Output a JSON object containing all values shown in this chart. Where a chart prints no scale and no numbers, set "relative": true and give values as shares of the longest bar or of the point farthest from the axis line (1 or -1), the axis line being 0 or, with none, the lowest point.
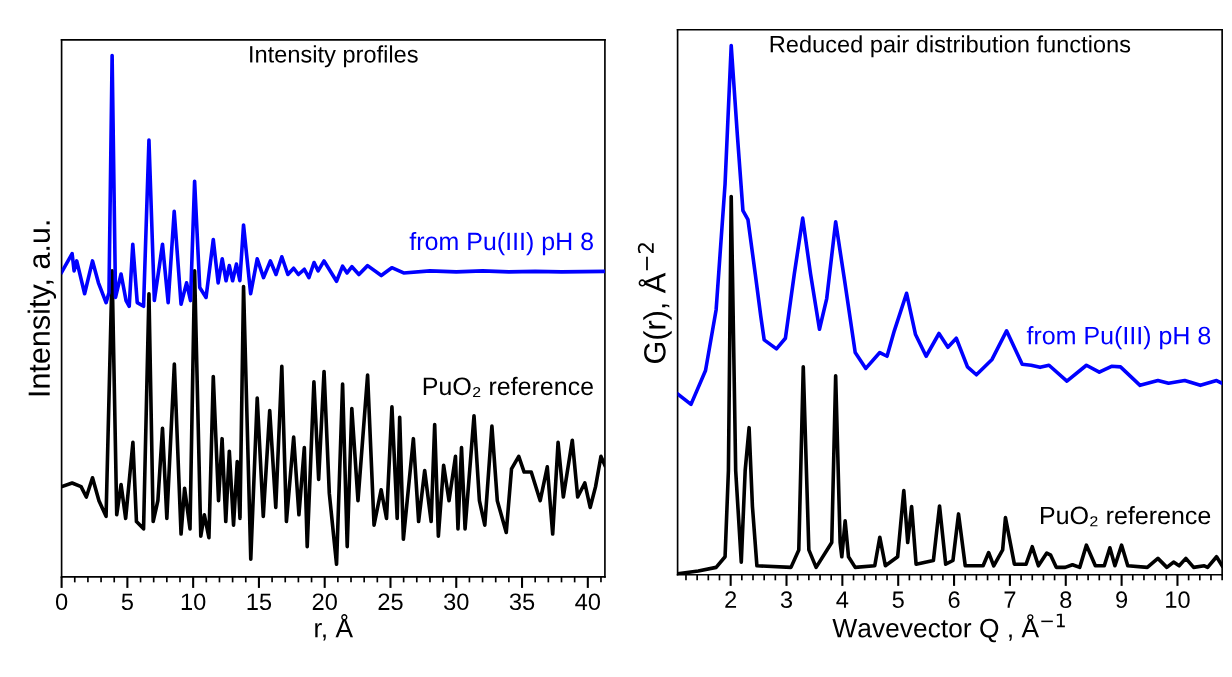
{
  "chart_data": [
    {
      "type": "line",
      "title": "Intensity profiles",
      "xlabel": "r, Å",
      "ylabel": "Intensity, a.u.",
      "relative": true,
      "tick_labels": "x",
      "grid": false,
      "legend": false,
      "xlim": [
        0,
        41.3
      ],
      "xticks": [
        0,
        5,
        10,
        15,
        20,
        25,
        30,
        35,
        40
      ],
      "series": [
        {
          "name": "from Pu(III) pH 8",
          "color": "#0000ff",
          "x": [
            0,
            0.8,
            0.95,
            1.15,
            1.75,
            2.35,
            2.8,
            3.38,
            3.6,
            3.84,
            4.1,
            4.52,
            4.9,
            5.14,
            5.41,
            5.75,
            6.23,
            6.64,
            7.05,
            7.67,
            8.1,
            8.56,
            9.08,
            9.5,
            9.8,
            10.11,
            10.5,
            10.98,
            11.53,
            11.9,
            12.21,
            12.5,
            12.75,
            13.0,
            13.29,
            13.55,
            13.83,
            14.37,
            14.87,
            15.35,
            15.87,
            16.3,
            16.74,
            17.2,
            17.64,
            18.0,
            18.45,
            18.8,
            19.19,
            19.5,
            19.95,
            20.9,
            21.36,
            21.7,
            22.07,
            22.6,
            23.26,
            24.3,
            25.1,
            26,
            28,
            30,
            32,
            34,
            36,
            38,
            41.3
          ],
          "values": [
            0.584,
            0.62,
            0.587,
            0.606,
            0.543,
            0.606,
            0.564,
            0.526,
            0.545,
            1.0,
            0.536,
            0.581,
            0.53,
            0.519,
            0.638,
            0.526,
            0.519,
            0.838,
            0.53,
            0.638,
            0.526,
            0.701,
            0.523,
            0.564,
            0.53,
            0.759,
            0.555,
            0.536,
            0.647,
            0.564,
            0.61,
            0.568,
            0.597,
            0.568,
            0.6,
            0.568,
            0.675,
            0.543,
            0.61,
            0.574,
            0.606,
            0.58,
            0.614,
            0.58,
            0.592,
            0.58,
            0.59,
            0.574,
            0.603,
            0.587,
            0.606,
            0.567,
            0.596,
            0.583,
            0.595,
            0.58,
            0.597,
            0.578,
            0.593,
            0.583,
            0.587,
            0.585,
            0.587,
            0.585,
            0.586,
            0.585,
            0.586
          ]
        },
        {
          "name": "PuO₂ reference",
          "color": "#000000",
          "x": [
            0.0,
            0.8,
            1.48,
            1.88,
            2.35,
            2.84,
            3.38,
            3.84,
            4.19,
            4.52,
            4.87,
            5.42,
            5.69,
            6.23,
            6.64,
            6.96,
            7.32,
            7.67,
            8.0,
            8.57,
            9.08,
            9.35,
            9.76,
            10.11,
            10.58,
            10.85,
            11.2,
            11.53,
            11.93,
            12.2,
            12.48,
            12.75,
            13.07,
            13.35,
            13.56,
            13.83,
            14.38,
            14.87,
            15.33,
            15.82,
            16.28,
            16.74,
            17.09,
            17.64,
            18.04,
            18.45,
            18.67,
            19.18,
            19.54,
            19.95,
            20.35,
            20.9,
            21.36,
            21.71,
            22.06,
            22.53,
            23.26,
            23.75,
            24.29,
            24.7,
            25.11,
            25.51,
            25.7,
            25.98,
            26.74,
            27.14,
            27.6,
            28.09,
            28.36,
            28.64,
            29.04,
            29.45,
            29.94,
            30.13,
            30.4,
            30.67,
            31.35,
            31.76,
            32.17,
            32.71,
            33.12,
            33.8,
            34.2,
            34.75,
            35.16,
            35.7,
            36.38,
            36.92,
            37.33,
            37.74,
            38.14,
            38.82,
            39.23,
            39.77,
            40.18,
            40.59,
            41.0,
            41.3
          ],
          "values": [
            0.173,
            0.18,
            0.173,
            0.153,
            0.19,
            0.146,
            0.116,
            0.587,
            0.119,
            0.177,
            0.112,
            0.258,
            0.106,
            0.092,
            0.543,
            0.106,
            0.146,
            0.285,
            0.112,
            0.408,
            0.082,
            0.17,
            0.092,
            0.587,
            0.078,
            0.119,
            0.075,
            0.384,
            0.146,
            0.265,
            0.106,
            0.241,
            0.099,
            0.221,
            0.112,
            0.557,
            0.034,
            0.343,
            0.116,
            0.319,
            0.133,
            0.404,
            0.106,
            0.268,
            0.119,
            0.248,
            0.058,
            0.374,
            0.187,
            0.394,
            0.16,
            0.024,
            0.37,
            0.058,
            0.323,
            0.146,
            0.387,
            0.099,
            0.167,
            0.112,
            0.326,
            0.112,
            0.306,
            0.072,
            0.265,
            0.106,
            0.204,
            0.106,
            0.292,
            0.078,
            0.214,
            0.146,
            0.231,
            0.092,
            0.248,
            0.092,
            0.309,
            0.146,
            0.099,
            0.289,
            0.146,
            0.085,
            0.207,
            0.231,
            0.201,
            0.201,
            0.146,
            0.211,
            0.082,
            0.258,
            0.153,
            0.262,
            0.153,
            0.18,
            0.133,
            0.173,
            0.231,
            0.214
          ]
        }
      ]
    },
    {
      "type": "line",
      "title": "Reduced pair distribution functions",
      "xlabel": "Wavevector Q , Å$^{−1}$",
      "ylabel": "G(r), Å$^{−2}$",
      "relative": true,
      "tick_labels": "x",
      "grid": false,
      "legend": false,
      "xlim": [
        1.05,
        10.8
      ],
      "xticks": [
        2,
        3,
        4,
        5,
        6,
        7,
        8,
        9,
        10
      ],
      "series": [
        {
          "name": "from Pu(III) pH 8",
          "color": "#0000ff",
          "x": [
            1.05,
            1.29,
            1.55,
            1.74,
            1.9,
            2.01,
            2.12,
            2.22,
            2.31,
            2.44,
            2.54,
            2.6,
            2.82,
            2.98,
            3.14,
            3.29,
            3.43,
            3.59,
            3.72,
            3.88,
            4.04,
            4.23,
            4.42,
            4.67,
            4.8,
            4.93,
            5.15,
            5.31,
            5.5,
            5.73,
            5.89,
            6.04,
            6.24,
            6.4,
            6.68,
            6.94,
            7.22,
            7.38,
            7.54,
            7.7,
            8.02,
            8.37,
            8.6,
            8.82,
            8.98,
            9.33,
            9.65,
            9.84,
            10.13,
            10.41,
            10.7,
            10.8
          ],
          "values": [
            0.342,
            0.322,
            0.386,
            0.501,
            0.739,
            1.0,
            0.831,
            0.688,
            0.671,
            0.569,
            0.488,
            0.444,
            0.427,
            0.447,
            0.569,
            0.674,
            0.569,
            0.464,
            0.522,
            0.667,
            0.556,
            0.42,
            0.39,
            0.42,
            0.413,
            0.461,
            0.532,
            0.454,
            0.413,
            0.456,
            0.43,
            0.447,
            0.393,
            0.378,
            0.407,
            0.461,
            0.398,
            0.396,
            0.392,
            0.396,
            0.366,
            0.396,
            0.383,
            0.394,
            0.393,
            0.358,
            0.367,
            0.362,
            0.367,
            0.358,
            0.367,
            0.362
          ]
        },
        {
          "name": "PuO₂ reference",
          "color": "#000000",
          "x": [
            1.05,
            1.42,
            1.74,
            1.9,
            1.96,
            2.01,
            2.09,
            2.19,
            2.26,
            2.33,
            2.39,
            2.47,
            3.08,
            3.22,
            3.3,
            3.4,
            3.53,
            3.81,
            3.88,
            3.96,
            3.99,
            4.05,
            4.11,
            4.23,
            4.58,
            4.67,
            4.77,
            4.99,
            5.1,
            5.17,
            5.24,
            5.32,
            5.63,
            5.74,
            5.85,
            5.98,
            6.08,
            6.2,
            6.52,
            6.62,
            6.71,
            6.87,
            6.92,
            7.0,
            7.08,
            7.29,
            7.4,
            7.51,
            7.66,
            7.73,
            7.83,
            7.99,
            8.12,
            8.25,
            8.37,
            8.53,
            8.69,
            8.79,
            8.88,
            9.0,
            9.11,
            9.46,
            9.65,
            9.81,
            9.93,
            10.03,
            10.15,
            10.29,
            10.48,
            10.54,
            10.7,
            10.8
          ],
          "values": [
            0.002,
            0.007,
            0.014,
            0.034,
            0.197,
            0.715,
            0.197,
            0.024,
            0.197,
            0.278,
            0.129,
            0.017,
            0.014,
            0.047,
            0.393,
            0.047,
            0.014,
            0.061,
            0.376,
            0.061,
            0.034,
            0.102,
            0.034,
            0.014,
            0.017,
            0.071,
            0.017,
            0.034,
            0.159,
            0.061,
            0.129,
            0.02,
            0.027,
            0.13,
            0.02,
            0.027,
            0.115,
            0.017,
            0.017,
            0.042,
            0.017,
            0.047,
            0.108,
            0.064,
            0.02,
            0.02,
            0.053,
            0.017,
            0.041,
            0.037,
            0.014,
            0.014,
            0.019,
            0.014,
            0.056,
            0.017,
            0.017,
            0.051,
            0.017,
            0.056,
            0.017,
            0.014,
            0.031,
            0.014,
            0.024,
            0.017,
            0.031,
            0.014,
            0.017,
            0.014,
            0.034,
            0.017
          ]
        }
      ]
    }
  ]
}
